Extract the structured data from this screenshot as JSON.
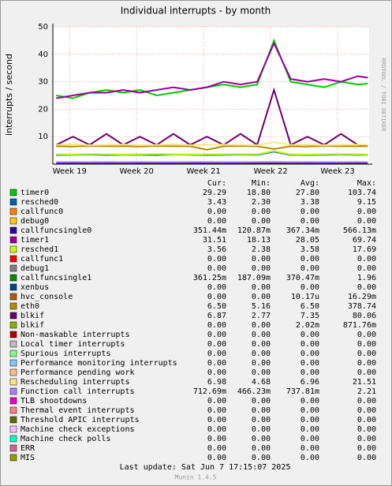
{
  "chart_data": {
    "type": "line",
    "title": "Individual interrupts - by month",
    "y_label": "interrupts / second",
    "side_label": "RRDTOOL / TOBI OETIKER",
    "xlim": [
      18.75,
      23.47
    ],
    "xticks": [
      {
        "value": 19,
        "label": "Week 19"
      },
      {
        "value": 20,
        "label": "Week 20"
      },
      {
        "value": 21,
        "label": "Week 21"
      },
      {
        "value": 22,
        "label": "Week 22"
      },
      {
        "value": 23,
        "label": "Week 23"
      }
    ],
    "ylim": [
      0,
      50
    ],
    "yticks": [
      10,
      20,
      30,
      40,
      50
    ],
    "grid": true,
    "x": [
      18.8,
      19.05,
      19.3,
      19.55,
      19.8,
      20.05,
      20.3,
      20.55,
      20.8,
      21.05,
      21.3,
      21.55,
      21.8,
      22.05,
      22.3,
      22.55,
      22.8,
      23.05,
      23.3,
      23.45
    ],
    "legend_columns": [
      "Cur:",
      "Min:",
      "Avg:",
      "Max:"
    ],
    "series": [
      {
        "name": "timer0",
        "color": "#00cc00",
        "legend_values": [
          "29.29",
          "18.80",
          "27.80",
          "103.74"
        ],
        "values": [
          25,
          24,
          26,
          27,
          26,
          27,
          25,
          26,
          27,
          28,
          29,
          28,
          29,
          45,
          30,
          29,
          28,
          30,
          29,
          29.3
        ]
      },
      {
        "name": "resched0",
        "color": "#0066b3",
        "legend_values": [
          "3.43",
          "2.30",
          "3.38",
          "9.15"
        ],
        "values": [
          3.3,
          3.4,
          3.5,
          3.3,
          3.4,
          3.4,
          3.3,
          3.5,
          3.4,
          3.3,
          3.4,
          3.5,
          3.4,
          4.5,
          3.4,
          3.3,
          3.4,
          3.5,
          3.4,
          3.43
        ]
      },
      {
        "name": "callfunc0",
        "color": "#ff8000",
        "legend_values": [
          "0.00",
          "0.00",
          "0.00",
          "0.00"
        ]
      },
      {
        "name": "debug0",
        "color": "#ffcc00",
        "legend_values": [
          "0.00",
          "0.00",
          "0.00",
          "0.00"
        ]
      },
      {
        "name": "callfuncsingle0",
        "color": "#330099",
        "legend_values": [
          "351.44m",
          "120.87m",
          "367.34m",
          "566.13m"
        ],
        "values": [
          0.36,
          0.37,
          0.35,
          0.38,
          0.36,
          0.37,
          0.35,
          0.36,
          0.38,
          0.37,
          0.36,
          0.35,
          0.37,
          0.4,
          0.36,
          0.37,
          0.35,
          0.36,
          0.37,
          0.35
        ]
      },
      {
        "name": "timer1",
        "color": "#990099",
        "legend_values": [
          "31.51",
          "18.13",
          "28.05",
          "69.74"
        ],
        "values": [
          24,
          25,
          26,
          26,
          27,
          26,
          27,
          28,
          27,
          28,
          30,
          29,
          30,
          44,
          31,
          30,
          31,
          30,
          32,
          31.5
        ]
      },
      {
        "name": "resched1",
        "color": "#ccff00",
        "legend_values": [
          "3.56",
          "2.38",
          "3.58",
          "17.69"
        ],
        "values": [
          3.6,
          3.5,
          3.7,
          3.6,
          3.5,
          3.6,
          3.7,
          3.6,
          3.5,
          3.6,
          3.6,
          3.7,
          3.6,
          4.8,
          3.6,
          3.5,
          3.6,
          3.7,
          3.6,
          3.56
        ]
      },
      {
        "name": "callfunc1",
        "color": "#ff0000",
        "legend_values": [
          "0.00",
          "0.00",
          "0.00",
          "0.00"
        ]
      },
      {
        "name": "debug1",
        "color": "#808080",
        "legend_values": [
          "0.00",
          "0.00",
          "0.00",
          "0.00"
        ]
      },
      {
        "name": "callfuncsingle1",
        "color": "#008f00",
        "legend_values": [
          "361.25m",
          "187.09m",
          "370.47m",
          "1.96"
        ]
      },
      {
        "name": "xenbus",
        "color": "#00487d",
        "legend_values": [
          "0.00",
          "0.00",
          "0.00",
          "0.00"
        ]
      },
      {
        "name": "hvc_console",
        "color": "#b35a00",
        "legend_values": [
          "0.00",
          "0.00",
          "10.17u",
          "16.29m"
        ]
      },
      {
        "name": "eth0",
        "color": "#b38f00",
        "legend_values": [
          "6.50",
          "5.16",
          "6.50",
          "378.74"
        ],
        "values": [
          6.5,
          6.4,
          6.6,
          6.5,
          6.5,
          6.4,
          6.6,
          6.5,
          6.5,
          5.2,
          6.5,
          6.6,
          6.5,
          5.5,
          6.5,
          6.4,
          6.6,
          6.5,
          6.5,
          6.5
        ]
      },
      {
        "name": "blkif",
        "color": "#6b006b",
        "legend_values": [
          "6.87",
          "2.77",
          "7.35",
          "80.06"
        ],
        "values": [
          7,
          10,
          7,
          11,
          7,
          10,
          7,
          11,
          7,
          10,
          7,
          11,
          7,
          27,
          7,
          10,
          7,
          11,
          7,
          6.87
        ]
      },
      {
        "name": "blkif",
        "color": "#8fb300",
        "legend_values": [
          "0.00",
          "0.00",
          "2.02m",
          "871.76m"
        ]
      },
      {
        "name": "Non-maskable interrupts",
        "color": "#b30000",
        "legend_values": [
          "0.00",
          "0.00",
          "0.00",
          "0.00"
        ]
      },
      {
        "name": "Local timer interrupts",
        "color": "#bebebe",
        "legend_values": [
          "0.00",
          "0.00",
          "0.00",
          "0.00"
        ]
      },
      {
        "name": "Spurious interrupts",
        "color": "#80ff80",
        "legend_values": [
          "0.00",
          "0.00",
          "0.00",
          "0.00"
        ]
      },
      {
        "name": "Performance monitoring interrupts",
        "color": "#80c9ff",
        "legend_values": [
          "0.00",
          "0.00",
          "0.00",
          "0.00"
        ]
      },
      {
        "name": "Performance pending work",
        "color": "#ffc080",
        "legend_values": [
          "0.00",
          "0.00",
          "0.00",
          "0.00"
        ]
      },
      {
        "name": "Rescheduling interrupts",
        "color": "#ffe680",
        "legend_values": [
          "6.98",
          "4.68",
          "6.96",
          "21.51"
        ],
        "values": [
          7,
          7.2,
          6.9,
          7,
          7.1,
          6.9,
          7,
          7.2,
          6.9,
          7,
          7.1,
          7,
          6.9,
          8,
          7,
          7.1,
          6.9,
          7,
          7.1,
          6.98
        ]
      },
      {
        "name": "Function call interrupts",
        "color": "#aa80ff",
        "legend_values": [
          "712.69m",
          "466.23m",
          "737.81m",
          "2.21"
        ],
        "values": [
          0.72,
          0.74,
          0.73,
          0.75,
          0.72,
          0.74,
          0.73,
          0.72,
          0.75,
          0.74,
          0.73,
          0.72,
          0.74,
          0.8,
          0.73,
          0.74,
          0.72,
          0.73,
          0.74,
          0.71
        ]
      },
      {
        "name": "TLB shootdowns",
        "color": "#ee00cc",
        "legend_values": [
          "0.00",
          "0.00",
          "0.00",
          "0.00"
        ]
      },
      {
        "name": "Thermal event interrupts",
        "color": "#ff8080",
        "legend_values": [
          "0.00",
          "0.00",
          "0.00",
          "0.00"
        ]
      },
      {
        "name": "Threshold APIC interrupts",
        "color": "#666600",
        "legend_values": [
          "0.00",
          "0.00",
          "0.00",
          "0.00"
        ]
      },
      {
        "name": "Machine check exceptions",
        "color": "#ffbfff",
        "legend_values": [
          "0.00",
          "0.00",
          "0.00",
          "0.00"
        ]
      },
      {
        "name": "Machine check polls",
        "color": "#00ffcc",
        "legend_values": [
          "0.00",
          "0.00",
          "0.00",
          "0.00"
        ]
      },
      {
        "name": "ERR",
        "color": "#cc6699",
        "legend_values": [
          "0.00",
          "0.00",
          "0.00",
          "0.00"
        ]
      },
      {
        "name": "MIS",
        "color": "#999900",
        "legend_values": [
          "0.00",
          "0.00",
          "0.00",
          "0.00"
        ]
      }
    ],
    "last_update": "Last update:  Sat Jun  7 17:15:07 2025",
    "footer": "Munin 1.4.5"
  }
}
